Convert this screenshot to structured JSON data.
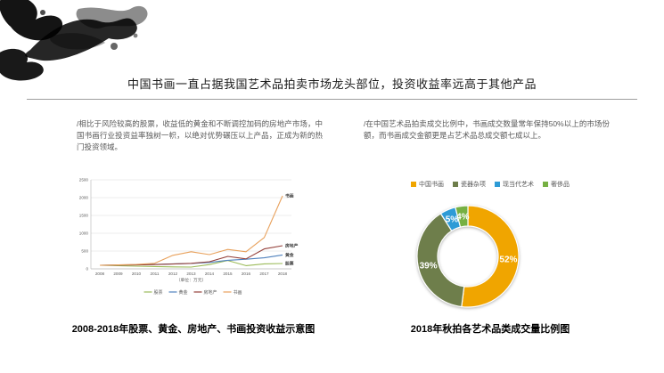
{
  "page": {
    "title": "中国书画一直占据我国艺术品拍卖市场龙头部位，投资收益率远高于其他产品"
  },
  "left_column": {
    "paragraph": "/相比于风险较高的股票，收益低的黄金和不断调控加码的房地产市场，中国书画行业投资益率独树一帜，以绝对优势碾压以上产品，正成为新的热门投资领域。",
    "caption": "2008-2018年股票、黄金、房地产、书画投资收益示意图"
  },
  "right_column": {
    "paragraph": "/在中国艺术品拍卖成交比例中，书画成交数量常年保持50%以上的市场份额，而书画成交金额更是占艺术品总成交额七成以上。",
    "caption": "2018年秋拍各艺术品类成交量比例图"
  },
  "icons": {
    "ink_splash": "ink-splash-decoration"
  },
  "chart_data": [
    {
      "type": "line",
      "title": "",
      "x": [
        2008,
        2009,
        2010,
        2011,
        2012,
        2013,
        2014,
        2015,
        2016,
        2017,
        2018
      ],
      "xlabel": "（单位：万元）",
      "ylabel": "",
      "ylim": [
        0,
        2500
      ],
      "yticks": [
        0,
        500,
        1000,
        1500,
        2000,
        2500
      ],
      "grid": true,
      "legend_position": "bottom",
      "end_labels": true,
      "series": [
        {
          "name": "股票",
          "color": "#9BBB59",
          "values": [
            100,
            90,
            75,
            65,
            55,
            50,
            120,
            235,
            90,
            140,
            150
          ]
        },
        {
          "name": "黄金",
          "color": "#4F81BD",
          "values": [
            100,
            110,
            115,
            125,
            140,
            150,
            180,
            240,
            270,
            310,
            390
          ]
        },
        {
          "name": "房地产",
          "color": "#94403A",
          "values": [
            100,
            105,
            110,
            120,
            135,
            155,
            200,
            350,
            280,
            560,
            650
          ]
        },
        {
          "name": "书画",
          "color": "#E8A15C",
          "values": [
            100,
            110,
            125,
            155,
            380,
            480,
            400,
            545,
            480,
            880,
            2050
          ]
        }
      ]
    },
    {
      "type": "pie",
      "subtype": "donut",
      "title": "",
      "legend_position": "top",
      "labels": [
        "中国书画",
        "瓷器杂项",
        "现当代艺术",
        "奢侈品"
      ],
      "values": [
        52,
        39,
        5,
        4
      ],
      "colors": [
        "#F0A500",
        "#6E7E4B",
        "#2E9BD6",
        "#76B043"
      ],
      "label_format": "percent",
      "label_color": "#ffffff"
    }
  ]
}
